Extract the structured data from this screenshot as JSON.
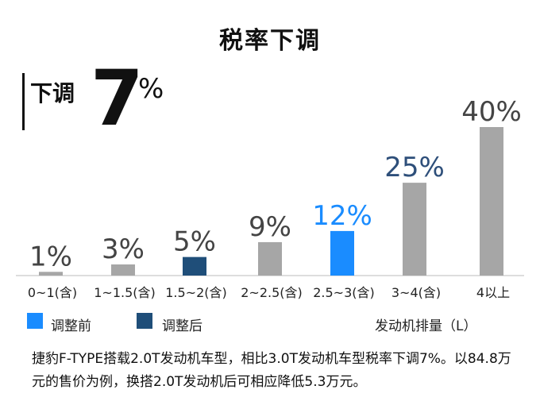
{
  "title": "税率下调",
  "headline": {
    "text": "下调",
    "number": "7",
    "percent": "%"
  },
  "chart_data": {
    "type": "bar",
    "categories": [
      "0~1(含)",
      "1~1.5(含)",
      "1.5~2(含)",
      "2~2.5(含)",
      "2.5~3(含)",
      "3~4(含)",
      "4以上"
    ],
    "values": [
      1,
      3,
      5,
      9,
      12,
      25,
      40
    ],
    "value_labels": [
      "1%",
      "3%",
      "5%",
      "9%",
      "12%",
      "25%",
      "40%"
    ],
    "ylim": [
      0,
      40
    ],
    "grid": false,
    "bar_colors": [
      "#a6a6a6",
      "#a6a6a6",
      "#1f4e79",
      "#a6a6a6",
      "#1a8cff",
      "#a6a6a6",
      "#a6a6a6"
    ],
    "label_colors": [
      "#444444",
      "#444444",
      "#444444",
      "#444444",
      "#1a8cff",
      "#2e4f7a",
      "#444444"
    ],
    "legend": [
      {
        "label": "调整前",
        "color": "#1a8cff"
      },
      {
        "label": "调整后",
        "color": "#1f4e79"
      }
    ],
    "unit": "发动机排量（L）"
  },
  "note": "捷豹F-TYPE搭载2.0T发动机车型，相比3.0T发动机车型税率下调7%。以84.8万元的售价为例，换搭2.0T发动机后可相应降低5.3万元。"
}
